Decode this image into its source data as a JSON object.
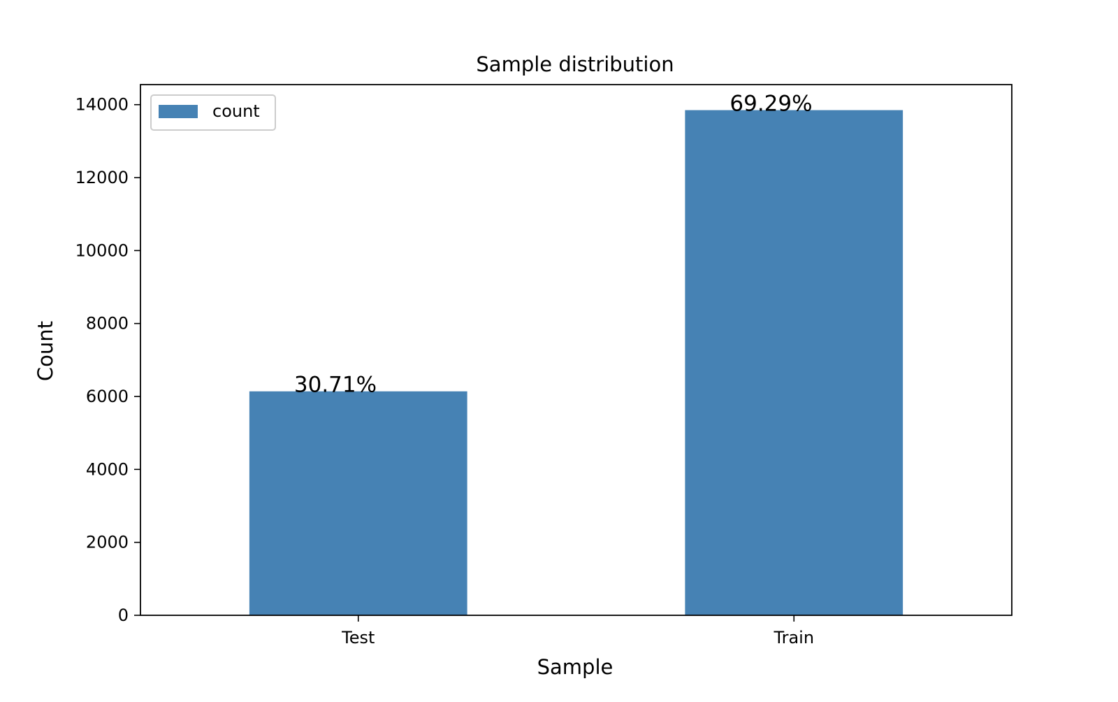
{
  "chart_data": {
    "type": "bar",
    "title": "Sample distribution",
    "xlabel": "Sample",
    "ylabel": "Count",
    "categories": [
      "Test",
      "Train"
    ],
    "series": [
      {
        "name": "count",
        "values": [
          6140,
          13850
        ],
        "labels": [
          "30.71%",
          "69.29%"
        ]
      }
    ],
    "ylim": [
      0,
      14550
    ],
    "yticks": [
      0,
      2000,
      4000,
      6000,
      8000,
      10000,
      12000,
      14000
    ],
    "grid": false,
    "legend_position": "top-left",
    "colors": {
      "bar": "#4682b4",
      "axis": "#000000",
      "legend_border": "#cccccc"
    }
  }
}
